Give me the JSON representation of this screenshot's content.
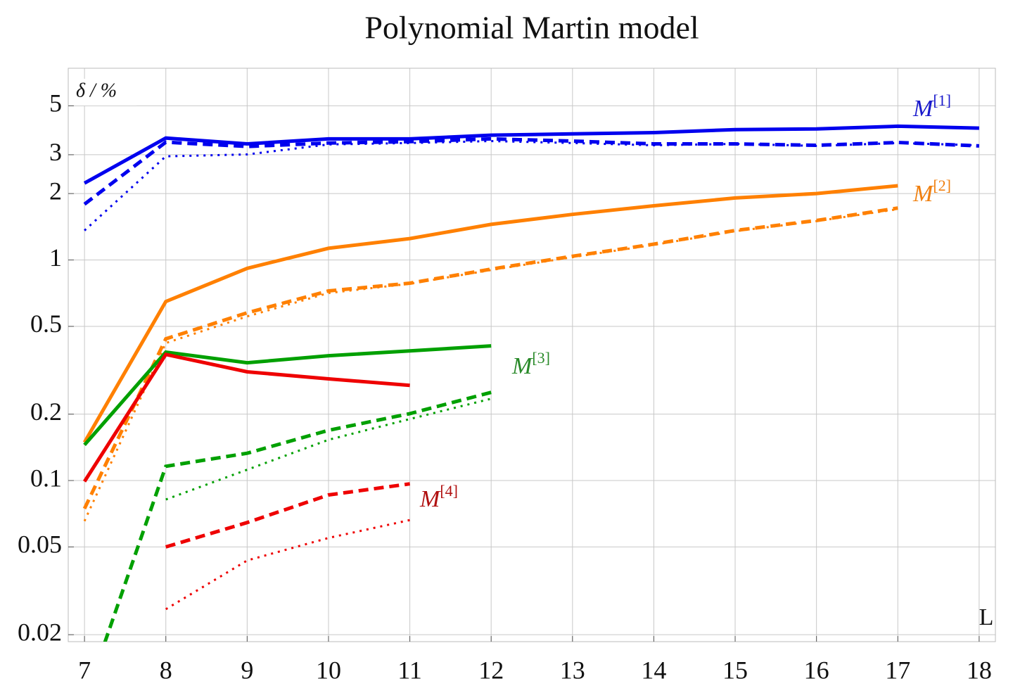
{
  "chart_data": {
    "type": "line",
    "title": "Polynomial Martin model",
    "y_label": "δ / %",
    "x_label": "L",
    "log_y": true,
    "grid": true,
    "xlim": [
      6.8,
      18.2
    ],
    "xticks": [
      7,
      8,
      9,
      10,
      11,
      12,
      13,
      14,
      15,
      16,
      17,
      18
    ],
    "ylim": [
      0.0186,
      7.4
    ],
    "yticks": [
      0.02,
      0.05,
      0.1,
      0.2,
      0.5,
      1,
      2,
      3,
      5
    ],
    "series": [
      {
        "color": "#0000ee",
        "style": "solid",
        "x": [
          7,
          8,
          9,
          10,
          11,
          12,
          13,
          14,
          15,
          16,
          17,
          18
        ],
        "values": [
          2.23,
          3.57,
          3.36,
          3.54,
          3.54,
          3.68,
          3.73,
          3.78,
          3.9,
          3.93,
          4.04,
          3.96
        ]
      },
      {
        "color": "#0000ee",
        "style": "dashed",
        "x": [
          7,
          8,
          9,
          10,
          11,
          12,
          13,
          14,
          15,
          16,
          17,
          18
        ],
        "values": [
          1.79,
          3.42,
          3.27,
          3.39,
          3.44,
          3.54,
          3.46,
          3.36,
          3.36,
          3.31,
          3.41,
          3.29
        ]
      },
      {
        "color": "#0000ee",
        "style": "dotted",
        "x": [
          7,
          8,
          9,
          10,
          11,
          12,
          13,
          14,
          15,
          16,
          17,
          18
        ],
        "values": [
          1.36,
          2.95,
          3.01,
          3.34,
          3.39,
          3.46,
          3.39,
          3.31,
          3.36,
          3.29,
          3.39,
          3.31
        ]
      },
      {
        "color": "#ff8000",
        "style": "solid",
        "x": [
          7,
          8,
          9,
          10,
          11,
          12,
          13,
          14,
          15,
          16,
          17
        ],
        "values": [
          0.149,
          0.648,
          0.916,
          1.13,
          1.25,
          1.45,
          1.61,
          1.76,
          1.91,
          2.0,
          2.17
        ]
      },
      {
        "color": "#ff8000",
        "style": "dashed",
        "x": [
          7,
          8,
          9,
          10,
          11,
          12,
          13,
          14,
          15,
          16,
          17
        ],
        "values": [
          0.0746,
          0.439,
          0.576,
          0.724,
          0.785,
          0.909,
          1.04,
          1.18,
          1.36,
          1.51,
          1.72
        ]
      },
      {
        "color": "#ff8000",
        "style": "dotted",
        "x": [
          7,
          8,
          9,
          10,
          11,
          12,
          13,
          14,
          15,
          16,
          17
        ],
        "values": [
          0.0655,
          0.42,
          0.555,
          0.708,
          0.78,
          0.9,
          1.03,
          1.17,
          1.35,
          1.5,
          1.7
        ]
      },
      {
        "color": "#00a000",
        "style": "solid",
        "x": [
          7,
          8,
          9,
          10,
          11,
          12
        ],
        "values": [
          0.145,
          0.382,
          0.342,
          0.368,
          0.387,
          0.408
        ]
      },
      {
        "color": "#00a000",
        "style": "dashed",
        "x": [
          7,
          8,
          9,
          10,
          11,
          12
        ],
        "values": [
          0.01,
          0.116,
          0.133,
          0.169,
          0.201,
          0.251
        ]
      },
      {
        "color": "#00a000",
        "style": "dotted",
        "x": [
          8,
          9,
          10,
          11,
          12
        ],
        "values": [
          0.082,
          0.112,
          0.153,
          0.19,
          0.235
        ]
      },
      {
        "color": "#ee0000",
        "style": "solid",
        "x": [
          7,
          8,
          9,
          10,
          11
        ],
        "values": [
          0.099,
          0.373,
          0.311,
          0.289,
          0.27
        ]
      },
      {
        "color": "#ee0000",
        "style": "dashed",
        "x": [
          8,
          9,
          10,
          11
        ],
        "values": [
          0.05,
          0.0645,
          0.086,
          0.0966
        ]
      },
      {
        "color": "#ee0000",
        "style": "dotted",
        "x": [
          8,
          9,
          10,
          11
        ],
        "values": [
          0.0261,
          0.0434,
          0.0549,
          0.0662
        ]
      }
    ],
    "annotations": [
      {
        "text": "M",
        "sup": "[1]",
        "color": "#1a1acc"
      },
      {
        "text": "M",
        "sup": "[2]",
        "color": "#f08010"
      },
      {
        "text": "M",
        "sup": "[3]",
        "color": "#2a8a2a"
      },
      {
        "text": "M",
        "sup": "[4]",
        "color": "#b01010"
      }
    ]
  }
}
